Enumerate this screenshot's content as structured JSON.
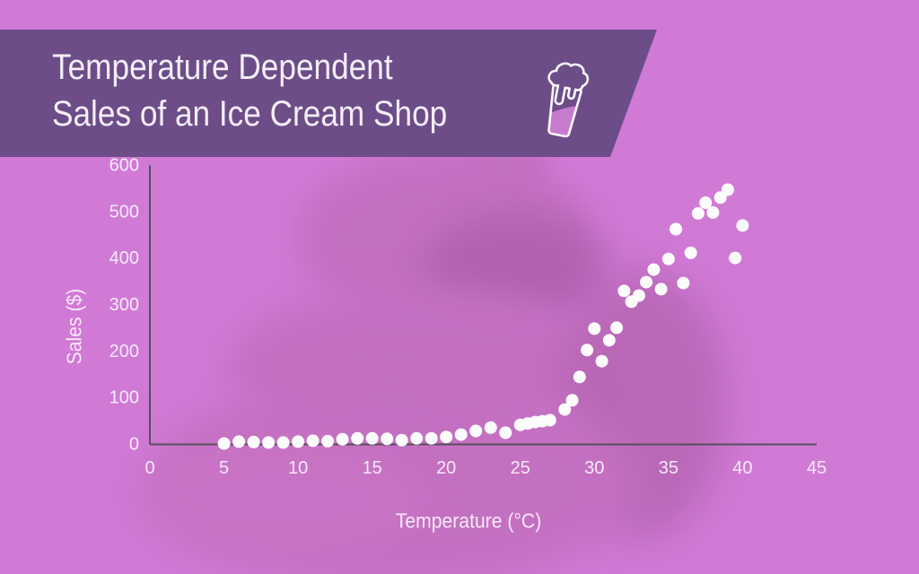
{
  "banner": {
    "title_line1": "Temperature Dependent",
    "title_line2": "Sales of an Ice Cream Shop",
    "icon": "ice-cream-cup-icon"
  },
  "colors": {
    "background": "#d07ad6",
    "banner": "#6c4d88",
    "title_text": "#f4eef8",
    "tick_text": "#f7effa",
    "axis": "#55505a",
    "dot": "#fdfcfd",
    "photo_mid": "#c470c1",
    "photo_dark": "#aa5ca8",
    "photo_deep": "#b564b1",
    "photo_light": "#ca74c6",
    "icon_liquid": "#c77bce"
  },
  "chart_data": {
    "type": "scatter",
    "title": "Temperature Dependent Sales of an Ice Cream Shop",
    "xlabel": "Temperature (°C)",
    "ylabel": "Sales ($)",
    "xlim": [
      0,
      45
    ],
    "ylim": [
      0,
      600
    ],
    "x_ticks": [
      0,
      5,
      10,
      15,
      20,
      25,
      30,
      35,
      40,
      45
    ],
    "y_ticks": [
      0,
      100,
      200,
      300,
      400,
      500,
      600
    ],
    "grid": false,
    "legend": false,
    "points": [
      [
        5,
        2
      ],
      [
        6,
        6
      ],
      [
        7,
        5
      ],
      [
        8,
        4
      ],
      [
        9,
        4
      ],
      [
        10,
        6
      ],
      [
        11,
        8
      ],
      [
        12,
        7
      ],
      [
        13,
        11
      ],
      [
        14,
        13
      ],
      [
        15,
        13
      ],
      [
        16,
        12
      ],
      [
        17,
        9
      ],
      [
        18,
        13
      ],
      [
        19,
        13
      ],
      [
        20,
        16
      ],
      [
        21,
        21
      ],
      [
        22,
        29
      ],
      [
        23,
        36
      ],
      [
        24,
        25
      ],
      [
        25,
        42
      ],
      [
        25.5,
        45
      ],
      [
        26,
        48
      ],
      [
        26.5,
        50
      ],
      [
        27,
        52
      ],
      [
        28,
        75
      ],
      [
        28.5,
        95
      ],
      [
        29,
        145
      ],
      [
        29.5,
        203
      ],
      [
        30,
        249
      ],
      [
        30.5,
        179
      ],
      [
        31,
        224
      ],
      [
        31.5,
        251
      ],
      [
        32,
        330
      ],
      [
        32.5,
        307
      ],
      [
        33,
        320
      ],
      [
        33.5,
        349
      ],
      [
        34,
        376
      ],
      [
        34.5,
        334
      ],
      [
        35,
        399
      ],
      [
        35.5,
        463
      ],
      [
        36,
        347
      ],
      [
        36.5,
        412
      ],
      [
        37,
        497
      ],
      [
        37.5,
        520
      ],
      [
        38,
        499
      ],
      [
        38.5,
        531
      ],
      [
        39,
        548
      ],
      [
        39.5,
        401
      ],
      [
        40,
        471
      ]
    ]
  }
}
